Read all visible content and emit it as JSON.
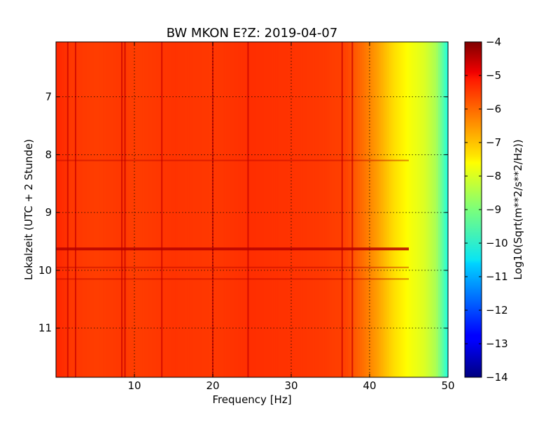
{
  "chart_data": {
    "type": "heatmap",
    "title": "BW MKON E?Z: 2019-04-07",
    "xlabel": "Frequency [Hz]",
    "ylabel": "Lokalzeit (UTC + 2 Stunde)",
    "colorbar_label": "Log10(Sqrt(m**2/s**2/Hz))",
    "xlim": [
      0,
      50
    ],
    "ylim": [
      6.05,
      11.85
    ],
    "y_inverted": true,
    "clim": [
      -14,
      -4
    ],
    "colormap": "jet",
    "grid": true,
    "grid_style": "dotted",
    "x_ticks": [
      10,
      20,
      30,
      40,
      50
    ],
    "y_ticks": [
      7,
      8,
      9,
      10,
      11
    ],
    "colorbar_ticks": [
      -4,
      -5,
      -6,
      -7,
      -8,
      -9,
      -10,
      -11,
      -12,
      -13,
      -14
    ],
    "frequency_profile": {
      "frequency_hz": [
        0,
        1,
        2,
        3,
        5,
        8,
        10,
        15,
        20,
        25,
        30,
        34,
        37,
        39,
        41,
        43,
        45,
        47,
        48.5,
        49.5,
        50
      ],
      "log10_amplitude": [
        -5.6,
        -5.7,
        -5.8,
        -5.8,
        -5.85,
        -5.8,
        -5.85,
        -5.75,
        -5.8,
        -5.7,
        -5.75,
        -5.8,
        -5.9,
        -6.3,
        -6.8,
        -7.4,
        -7.8,
        -8.1,
        -8.6,
        -9.5,
        -10.0
      ]
    },
    "spectral_lines_hz": [
      1.5,
      2.5,
      8.4,
      8.8,
      13.5,
      20,
      24.5,
      36.5,
      37.8
    ],
    "broadband_events_hour": [
      9.63,
      8.1,
      9.95,
      10.15
    ]
  }
}
